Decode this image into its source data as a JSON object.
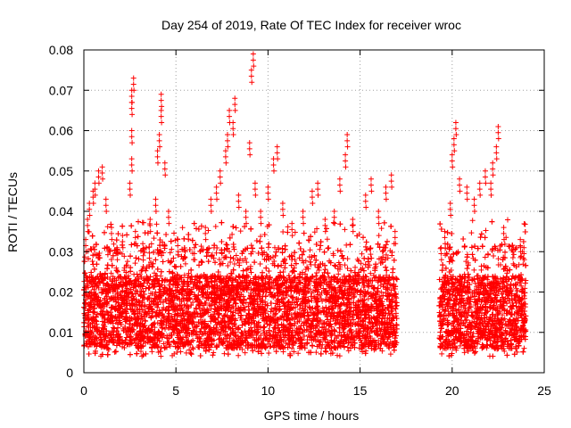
{
  "chart_data": {
    "type": "scatter",
    "title": "Day 254 of 2019, Rate Of TEC Index for receiver wroc",
    "xlabel": "GPS time / hours",
    "ylabel": "ROTI / TECUs",
    "xlim": [
      0,
      25
    ],
    "ylim": [
      0,
      0.08
    ],
    "xticks": [
      0,
      5,
      10,
      15,
      20,
      25
    ],
    "xtick_labels": [
      "0",
      "5",
      "10",
      "15",
      "20",
      "25"
    ],
    "yticks": [
      0,
      0.01,
      0.02,
      0.03,
      0.04,
      0.05,
      0.06,
      0.07,
      0.08
    ],
    "ytick_labels": [
      "0",
      "0.01",
      "0.02",
      "0.03",
      "0.04",
      "0.05",
      "0.06",
      "0.07",
      "0.08"
    ],
    "grid": true,
    "marker": "+",
    "series_color": "#ff0000",
    "data_gaps_hours": [
      [
        17.0,
        19.3
      ]
    ],
    "data_extent_hours": [
      0,
      24
    ],
    "series": [
      {
        "name": "ROTI",
        "points": [
          [
            0.1,
            0.033
          ],
          [
            0.2,
            0.038
          ],
          [
            0.3,
            0.042
          ],
          [
            0.5,
            0.045
          ],
          [
            0.6,
            0.047
          ],
          [
            0.8,
            0.05
          ],
          [
            1.0,
            0.051
          ],
          [
            1.2,
            0.043
          ],
          [
            1.5,
            0.036
          ],
          [
            1.8,
            0.031
          ],
          [
            2.1,
            0.034
          ],
          [
            2.5,
            0.047
          ],
          [
            2.6,
            0.053
          ],
          [
            2.6,
            0.06
          ],
          [
            2.6,
            0.067
          ],
          [
            2.6,
            0.07
          ],
          [
            2.7,
            0.073
          ],
          [
            2.8,
            0.035
          ],
          [
            3.2,
            0.032
          ],
          [
            3.6,
            0.038
          ],
          [
            3.9,
            0.043
          ],
          [
            4.0,
            0.055
          ],
          [
            4.1,
            0.059
          ],
          [
            4.2,
            0.065
          ],
          [
            4.2,
            0.069
          ],
          [
            4.4,
            0.052
          ],
          [
            4.6,
            0.04
          ],
          [
            5.1,
            0.033
          ],
          [
            5.5,
            0.03
          ],
          [
            6.0,
            0.031
          ],
          [
            6.6,
            0.036
          ],
          [
            6.9,
            0.043
          ],
          [
            7.2,
            0.046
          ],
          [
            7.4,
            0.05
          ],
          [
            7.7,
            0.055
          ],
          [
            7.8,
            0.059
          ],
          [
            7.9,
            0.065
          ],
          [
            8.1,
            0.062
          ],
          [
            8.2,
            0.068
          ],
          [
            8.4,
            0.044
          ],
          [
            8.8,
            0.04
          ],
          [
            9.0,
            0.057
          ],
          [
            9.1,
            0.075
          ],
          [
            9.2,
            0.079
          ],
          [
            9.3,
            0.047
          ],
          [
            9.6,
            0.04
          ],
          [
            10.0,
            0.046
          ],
          [
            10.3,
            0.053
          ],
          [
            10.5,
            0.056
          ],
          [
            10.8,
            0.042
          ],
          [
            11.3,
            0.037
          ],
          [
            11.9,
            0.04
          ],
          [
            12.4,
            0.045
          ],
          [
            12.7,
            0.047
          ],
          [
            13.1,
            0.038
          ],
          [
            13.6,
            0.04
          ],
          [
            13.9,
            0.048
          ],
          [
            14.2,
            0.054
          ],
          [
            14.3,
            0.059
          ],
          [
            14.6,
            0.038
          ],
          [
            15.3,
            0.044
          ],
          [
            15.6,
            0.048
          ],
          [
            16.0,
            0.04
          ],
          [
            16.4,
            0.046
          ],
          [
            16.7,
            0.049
          ],
          [
            16.9,
            0.035
          ],
          [
            19.4,
            0.031
          ],
          [
            19.6,
            0.035
          ],
          [
            19.9,
            0.042
          ],
          [
            20.0,
            0.054
          ],
          [
            20.1,
            0.058
          ],
          [
            20.2,
            0.062
          ],
          [
            20.4,
            0.048
          ],
          [
            20.8,
            0.046
          ],
          [
            21.2,
            0.043
          ],
          [
            21.5,
            0.047
          ],
          [
            21.8,
            0.05
          ],
          [
            22.1,
            0.047
          ],
          [
            22.2,
            0.052
          ],
          [
            22.4,
            0.056
          ],
          [
            22.5,
            0.061
          ],
          [
            22.8,
            0.036
          ],
          [
            23.3,
            0.03
          ],
          [
            23.7,
            0.033
          ],
          [
            23.9,
            0.031
          ]
        ]
      }
    ]
  }
}
